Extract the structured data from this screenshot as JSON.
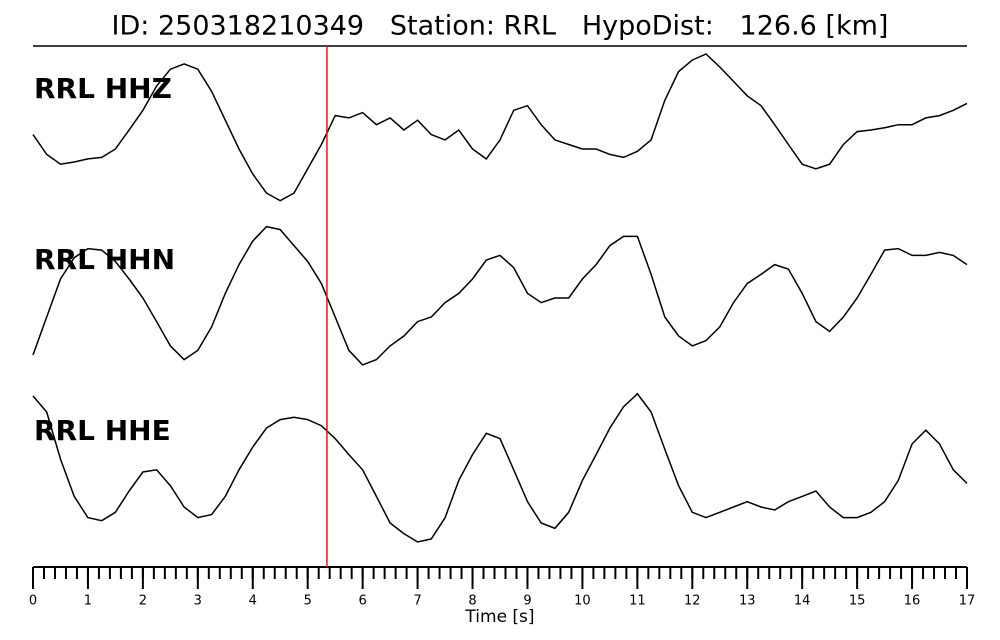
{
  "chart_data": {
    "type": "line",
    "title": "ID: 250318210349   Station: RRL   HypoDist:   126.6 [km]",
    "xlabel": "Time [s]",
    "xlim": [
      0,
      17
    ],
    "xticks": [
      0,
      1,
      2,
      3,
      4,
      5,
      6,
      7,
      8,
      9,
      10,
      11,
      12,
      13,
      14,
      15,
      16,
      17
    ],
    "xminor_step": 0.2,
    "ylim": [
      -1,
      1
    ],
    "pick_time": 5.35,
    "pick_color": "#e41a1c",
    "label_color": "#4e9a06",
    "x": [
      0,
      0.25,
      0.5,
      0.75,
      1,
      1.25,
      1.5,
      1.75,
      2,
      2.25,
      2.5,
      2.75,
      3,
      3.25,
      3.5,
      3.75,
      4,
      4.25,
      4.5,
      4.75,
      5,
      5.25,
      5.5,
      5.75,
      6,
      6.25,
      6.5,
      6.75,
      7,
      7.25,
      7.5,
      7.75,
      8,
      8.25,
      8.5,
      8.75,
      9,
      9.25,
      9.5,
      9.75,
      10,
      10.25,
      10.5,
      10.75,
      11,
      11.25,
      11.5,
      11.75,
      12,
      12.25,
      12.5,
      12.75,
      13,
      13.25,
      13.5,
      13.75,
      14,
      14.25,
      14.5,
      14.75,
      15,
      15.25,
      15.5,
      15.75,
      16,
      16.25,
      16.5,
      16.75,
      17
    ],
    "series": [
      {
        "name": "RRL HHZ",
        "color": "#000000",
        "values": [
          -0.1,
          -0.36,
          -0.49,
          -0.46,
          -0.42,
          -0.4,
          -0.29,
          -0.04,
          0.22,
          0.54,
          0.76,
          0.83,
          0.76,
          0.47,
          0.09,
          -0.29,
          -0.62,
          -0.87,
          -0.97,
          -0.87,
          -0.55,
          -0.23,
          0.15,
          0.12,
          0.19,
          0.03,
          0.12,
          -0.04,
          0.09,
          -0.1,
          -0.17,
          -0.04,
          -0.29,
          -0.42,
          -0.17,
          0.22,
          0.28,
          0.03,
          -0.17,
          -0.23,
          -0.29,
          -0.29,
          -0.36,
          -0.4,
          -0.32,
          -0.17,
          0.35,
          0.73,
          0.88,
          0.96,
          0.79,
          0.6,
          0.41,
          0.28,
          0.03,
          -0.23,
          -0.49,
          -0.55,
          -0.49,
          -0.23,
          -0.06,
          -0.04,
          -0.01,
          0.03,
          0.03,
          0.12,
          0.15,
          0.22,
          0.31
        ]
      },
      {
        "name": "RRL HHN",
        "color": "#000000",
        "values": [
          -0.75,
          -0.25,
          0.25,
          0.53,
          0.65,
          0.63,
          0.48,
          0.25,
          0,
          -0.31,
          -0.63,
          -0.81,
          -0.69,
          -0.38,
          0.06,
          0.44,
          0.75,
          0.94,
          0.9,
          0.69,
          0.48,
          0.19,
          -0.25,
          -0.69,
          -0.88,
          -0.81,
          -0.63,
          -0.5,
          -0.31,
          -0.25,
          -0.06,
          0.06,
          0.25,
          0.5,
          0.56,
          0.4,
          0.06,
          -0.06,
          0,
          0,
          0.25,
          0.44,
          0.69,
          0.81,
          0.81,
          0.31,
          -0.25,
          -0.5,
          -0.63,
          -0.56,
          -0.38,
          -0.06,
          0.19,
          0.31,
          0.44,
          0.38,
          0.06,
          -0.31,
          -0.44,
          -0.25,
          0,
          0.31,
          0.63,
          0.65,
          0.56,
          0.56,
          0.6,
          0.56,
          0.44
        ]
      },
      {
        "name": "RRL HHE",
        "color": "#000000",
        "values": [
          0.96,
          0.75,
          0.13,
          -0.36,
          -0.64,
          -0.68,
          -0.57,
          -0.29,
          -0.04,
          -0.01,
          -0.22,
          -0.5,
          -0.64,
          -0.6,
          -0.36,
          -0.01,
          0.29,
          0.54,
          0.65,
          0.68,
          0.65,
          0.57,
          0.4,
          0.19,
          -0.01,
          -0.36,
          -0.71,
          -0.85,
          -0.96,
          -0.92,
          -0.64,
          -0.15,
          0.19,
          0.47,
          0.4,
          -0.01,
          -0.43,
          -0.71,
          -0.78,
          -0.57,
          -0.15,
          0.19,
          0.54,
          0.82,
          0.99,
          0.75,
          0.26,
          -0.22,
          -0.57,
          -0.64,
          -0.57,
          -0.5,
          -0.43,
          -0.5,
          -0.54,
          -0.43,
          -0.36,
          -0.29,
          -0.5,
          -0.64,
          -0.64,
          -0.57,
          -0.43,
          -0.15,
          0.33,
          0.51,
          0.33,
          -0.01,
          -0.19
        ]
      }
    ]
  }
}
